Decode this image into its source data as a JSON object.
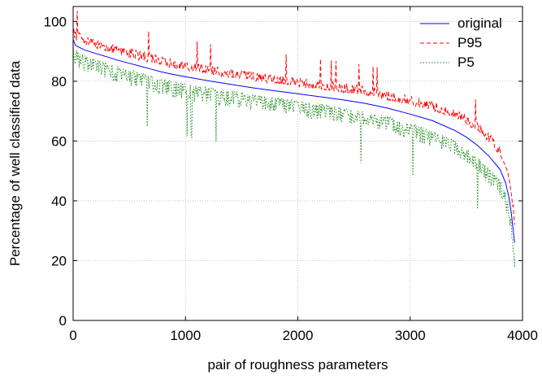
{
  "chart_data": {
    "type": "line",
    "title": "",
    "xlabel": "pair of roughness parameters",
    "ylabel": "Percentage of well classified data",
    "xlim": [
      0,
      4000
    ],
    "ylim": [
      0,
      105
    ],
    "xticks": [
      0,
      1000,
      2000,
      3000,
      4000
    ],
    "yticks": [
      0,
      20,
      40,
      60,
      80,
      100
    ],
    "grid": true,
    "legend_position": "top-right",
    "series": [
      {
        "name": "original",
        "color": "#0000ff",
        "style": "solid",
        "x": [
          0,
          20,
          100,
          200,
          300,
          400,
          500,
          600,
          700,
          800,
          900,
          1000,
          1200,
          1400,
          1600,
          1800,
          2000,
          2200,
          2400,
          2600,
          2800,
          3000,
          3200,
          3400,
          3500,
          3600,
          3700,
          3800,
          3850,
          3880,
          3900,
          3915,
          3930
        ],
        "y": [
          94,
          92,
          90.5,
          89.3,
          88.2,
          87,
          86,
          85,
          84,
          83,
          82.2,
          81.5,
          80.2,
          79,
          77.8,
          76.8,
          75.8,
          74.8,
          73.8,
          72.6,
          71,
          69,
          66.8,
          63.5,
          61.3,
          58.5,
          55,
          50.5,
          46,
          41,
          36,
          31,
          26
        ]
      },
      {
        "name": "P95",
        "color": "#ff0000",
        "style": "dashed",
        "x": [
          0,
          20,
          100,
          200,
          300,
          400,
          500,
          600,
          700,
          800,
          900,
          1000,
          1200,
          1400,
          1600,
          1800,
          2000,
          2200,
          2400,
          2600,
          2800,
          3000,
          3200,
          3400,
          3500,
          3600,
          3700,
          3800,
          3850,
          3880,
          3900,
          3915,
          3930
        ],
        "y": [
          95,
          93.5,
          92,
          91,
          89.8,
          88.8,
          87.8,
          86.8,
          86,
          85,
          84.2,
          83.5,
          82.2,
          81,
          80,
          79,
          78,
          77,
          76,
          75,
          73.5,
          71.8,
          70,
          67.5,
          65.5,
          63,
          59.5,
          55,
          51,
          47,
          42,
          37,
          32
        ],
        "noise_amplitude": 3.5
      },
      {
        "name": "P5",
        "color": "#1a8a1a",
        "style": "dotted",
        "x": [
          0,
          20,
          100,
          200,
          300,
          400,
          500,
          600,
          700,
          800,
          900,
          1000,
          1200,
          1400,
          1600,
          1800,
          2000,
          2200,
          2400,
          2600,
          2800,
          3000,
          3200,
          3400,
          3500,
          3600,
          3700,
          3800,
          3850,
          3880,
          3900,
          3915,
          3930
        ],
        "y": [
          93,
          91,
          89,
          87.8,
          86.5,
          85.3,
          84.2,
          83.2,
          82.2,
          81.2,
          80.3,
          79.5,
          78.3,
          77.2,
          76,
          75,
          74,
          72.8,
          71.6,
          70.3,
          68.6,
          66.5,
          63.8,
          60.5,
          58,
          55,
          51.5,
          47.5,
          43,
          38,
          33,
          27,
          21
        ],
        "noise_amplitude": 6
      }
    ]
  }
}
